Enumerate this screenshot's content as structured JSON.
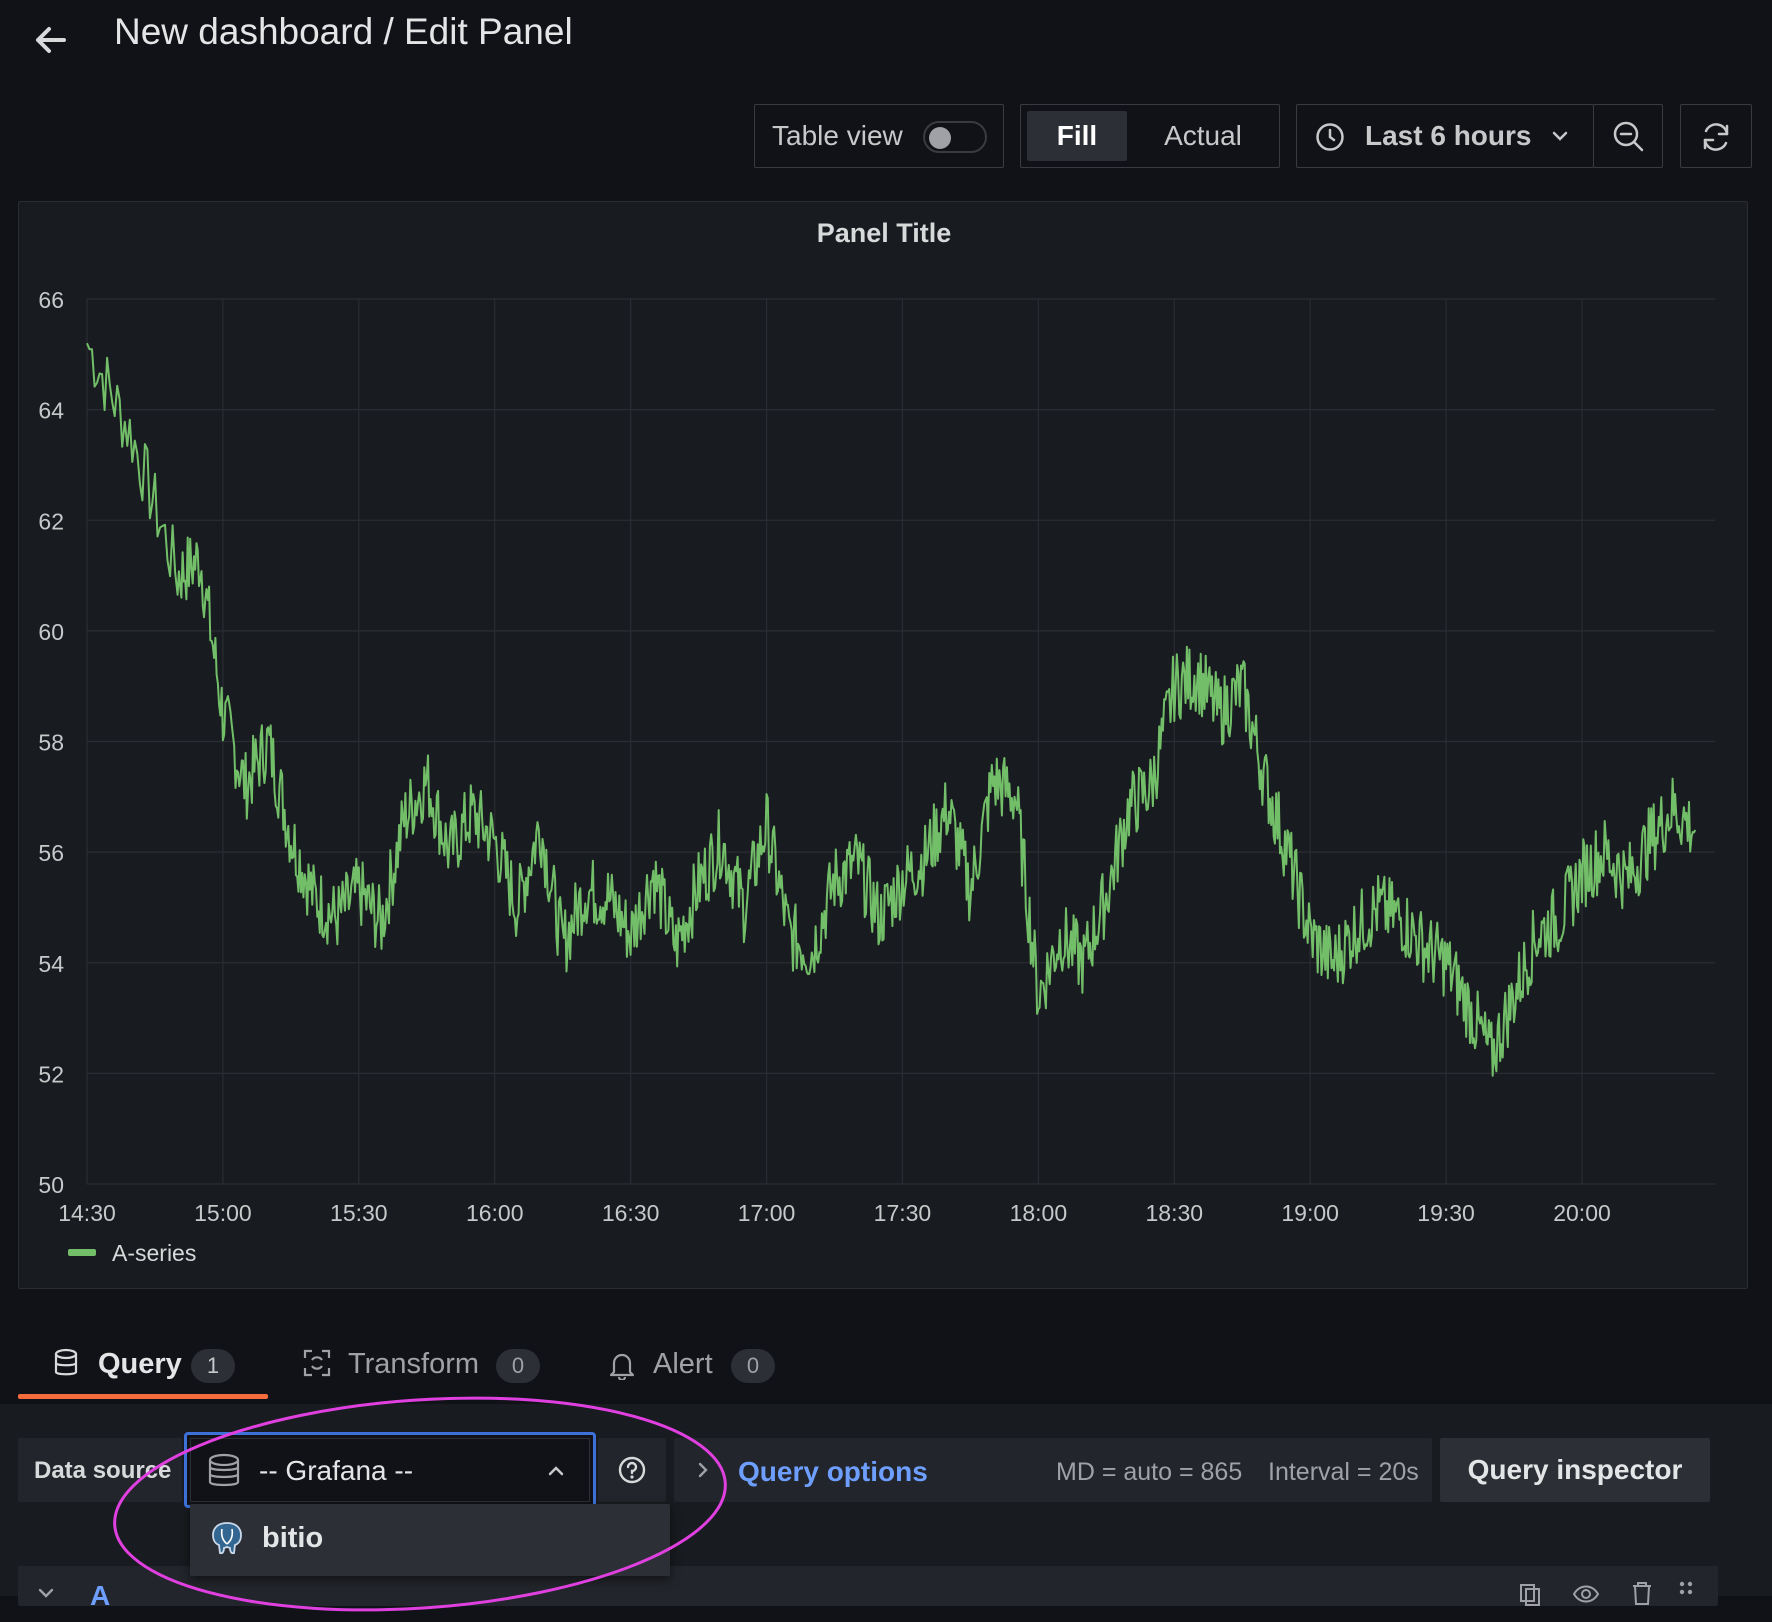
{
  "header": {
    "title": "New dashboard / Edit Panel"
  },
  "toolbar": {
    "table_view_label": "Table view",
    "table_view_enabled": false,
    "fill_label": "Fill",
    "actual_label": "Actual",
    "time_range_label": "Last 6 hours"
  },
  "panel": {
    "title": "Panel Title"
  },
  "chart_data": {
    "type": "line",
    "title": "Panel Title",
    "ylim": [
      50,
      66
    ],
    "yticks": [
      "66",
      "64",
      "62",
      "60",
      "58",
      "56",
      "54",
      "52",
      "50"
    ],
    "xticks": [
      "14:30",
      "15:00",
      "15:30",
      "16:00",
      "16:30",
      "17:00",
      "17:30",
      "18:00",
      "18:30",
      "19:00",
      "19:30",
      "20:00"
    ],
    "grid": true,
    "legend_position": "bottom-left",
    "series": [
      {
        "name": "A-series",
        "color": "#73bf69",
        "x": [
          "14:30",
          "14:40",
          "14:50",
          "14:55",
          "15:00",
          "15:05",
          "15:10",
          "15:15",
          "15:20",
          "15:25",
          "15:30",
          "15:35",
          "15:40",
          "15:45",
          "15:50",
          "15:55",
          "16:00",
          "16:05",
          "16:10",
          "16:15",
          "16:20",
          "16:25",
          "16:30",
          "16:35",
          "16:40",
          "16:45",
          "16:50",
          "16:55",
          "17:00",
          "17:05",
          "17:10",
          "17:15",
          "17:20",
          "17:25",
          "17:30",
          "17:35",
          "17:40",
          "17:45",
          "17:50",
          "17:55",
          "18:00",
          "18:05",
          "18:10",
          "18:15",
          "18:20",
          "18:25",
          "18:30",
          "18:35",
          "18:40",
          "18:45",
          "18:50",
          "18:55",
          "19:00",
          "19:05",
          "19:10",
          "19:15",
          "19:20",
          "19:25",
          "19:30",
          "19:35",
          "19:40",
          "19:45",
          "19:50",
          "19:55",
          "20:00",
          "20:05",
          "20:10",
          "20:15",
          "20:20",
          "20:25"
        ],
        "values": [
          65.2,
          63.5,
          61.0,
          61.3,
          58.5,
          57.2,
          58.0,
          56.3,
          55.2,
          54.8,
          55.3,
          54.7,
          56.6,
          57.3,
          56.0,
          56.7,
          56.2,
          55.0,
          56.5,
          54.3,
          55.3,
          55.2,
          54.5,
          55.6,
          54.3,
          55.4,
          56.2,
          55.0,
          56.5,
          54.5,
          54.2,
          55.5,
          55.8,
          54.8,
          55.5,
          55.9,
          56.8,
          55.3,
          57.3,
          57.0,
          53.4,
          54.5,
          54.0,
          55.2,
          56.8,
          57.2,
          59.0,
          59.2,
          58.5,
          59.0,
          57.3,
          56.0,
          54.5,
          54.0,
          54.6,
          55.0,
          54.8,
          54.3,
          54.0,
          53.2,
          52.3,
          53.4,
          54.5,
          54.8,
          55.6,
          56.0,
          55.5,
          56.2,
          56.8,
          56.4
        ]
      }
    ]
  },
  "tabs": [
    {
      "label": "Query",
      "count": "1"
    },
    {
      "label": "Transform",
      "count": "0"
    },
    {
      "label": "Alert",
      "count": "0"
    }
  ],
  "query_row": {
    "data_source_label": "Data source",
    "data_source_value": "-- Grafana --",
    "query_options_label": "Query options",
    "md_text": "MD = auto = 865",
    "interval_text": "Interval = 20s",
    "query_inspector_label": "Query inspector"
  },
  "dropdown": {
    "options": [
      "bitio"
    ]
  },
  "query_editor": {
    "ref_id": "A"
  },
  "colors": {
    "background": "#111217",
    "panel_bg": "#181b1f",
    "series": "#73bf69",
    "accent_link": "#6e9fff",
    "tab_active_underline": "#f46c3b",
    "annotation_circle": "#e040e0",
    "focus_border": "#3d71d9"
  }
}
